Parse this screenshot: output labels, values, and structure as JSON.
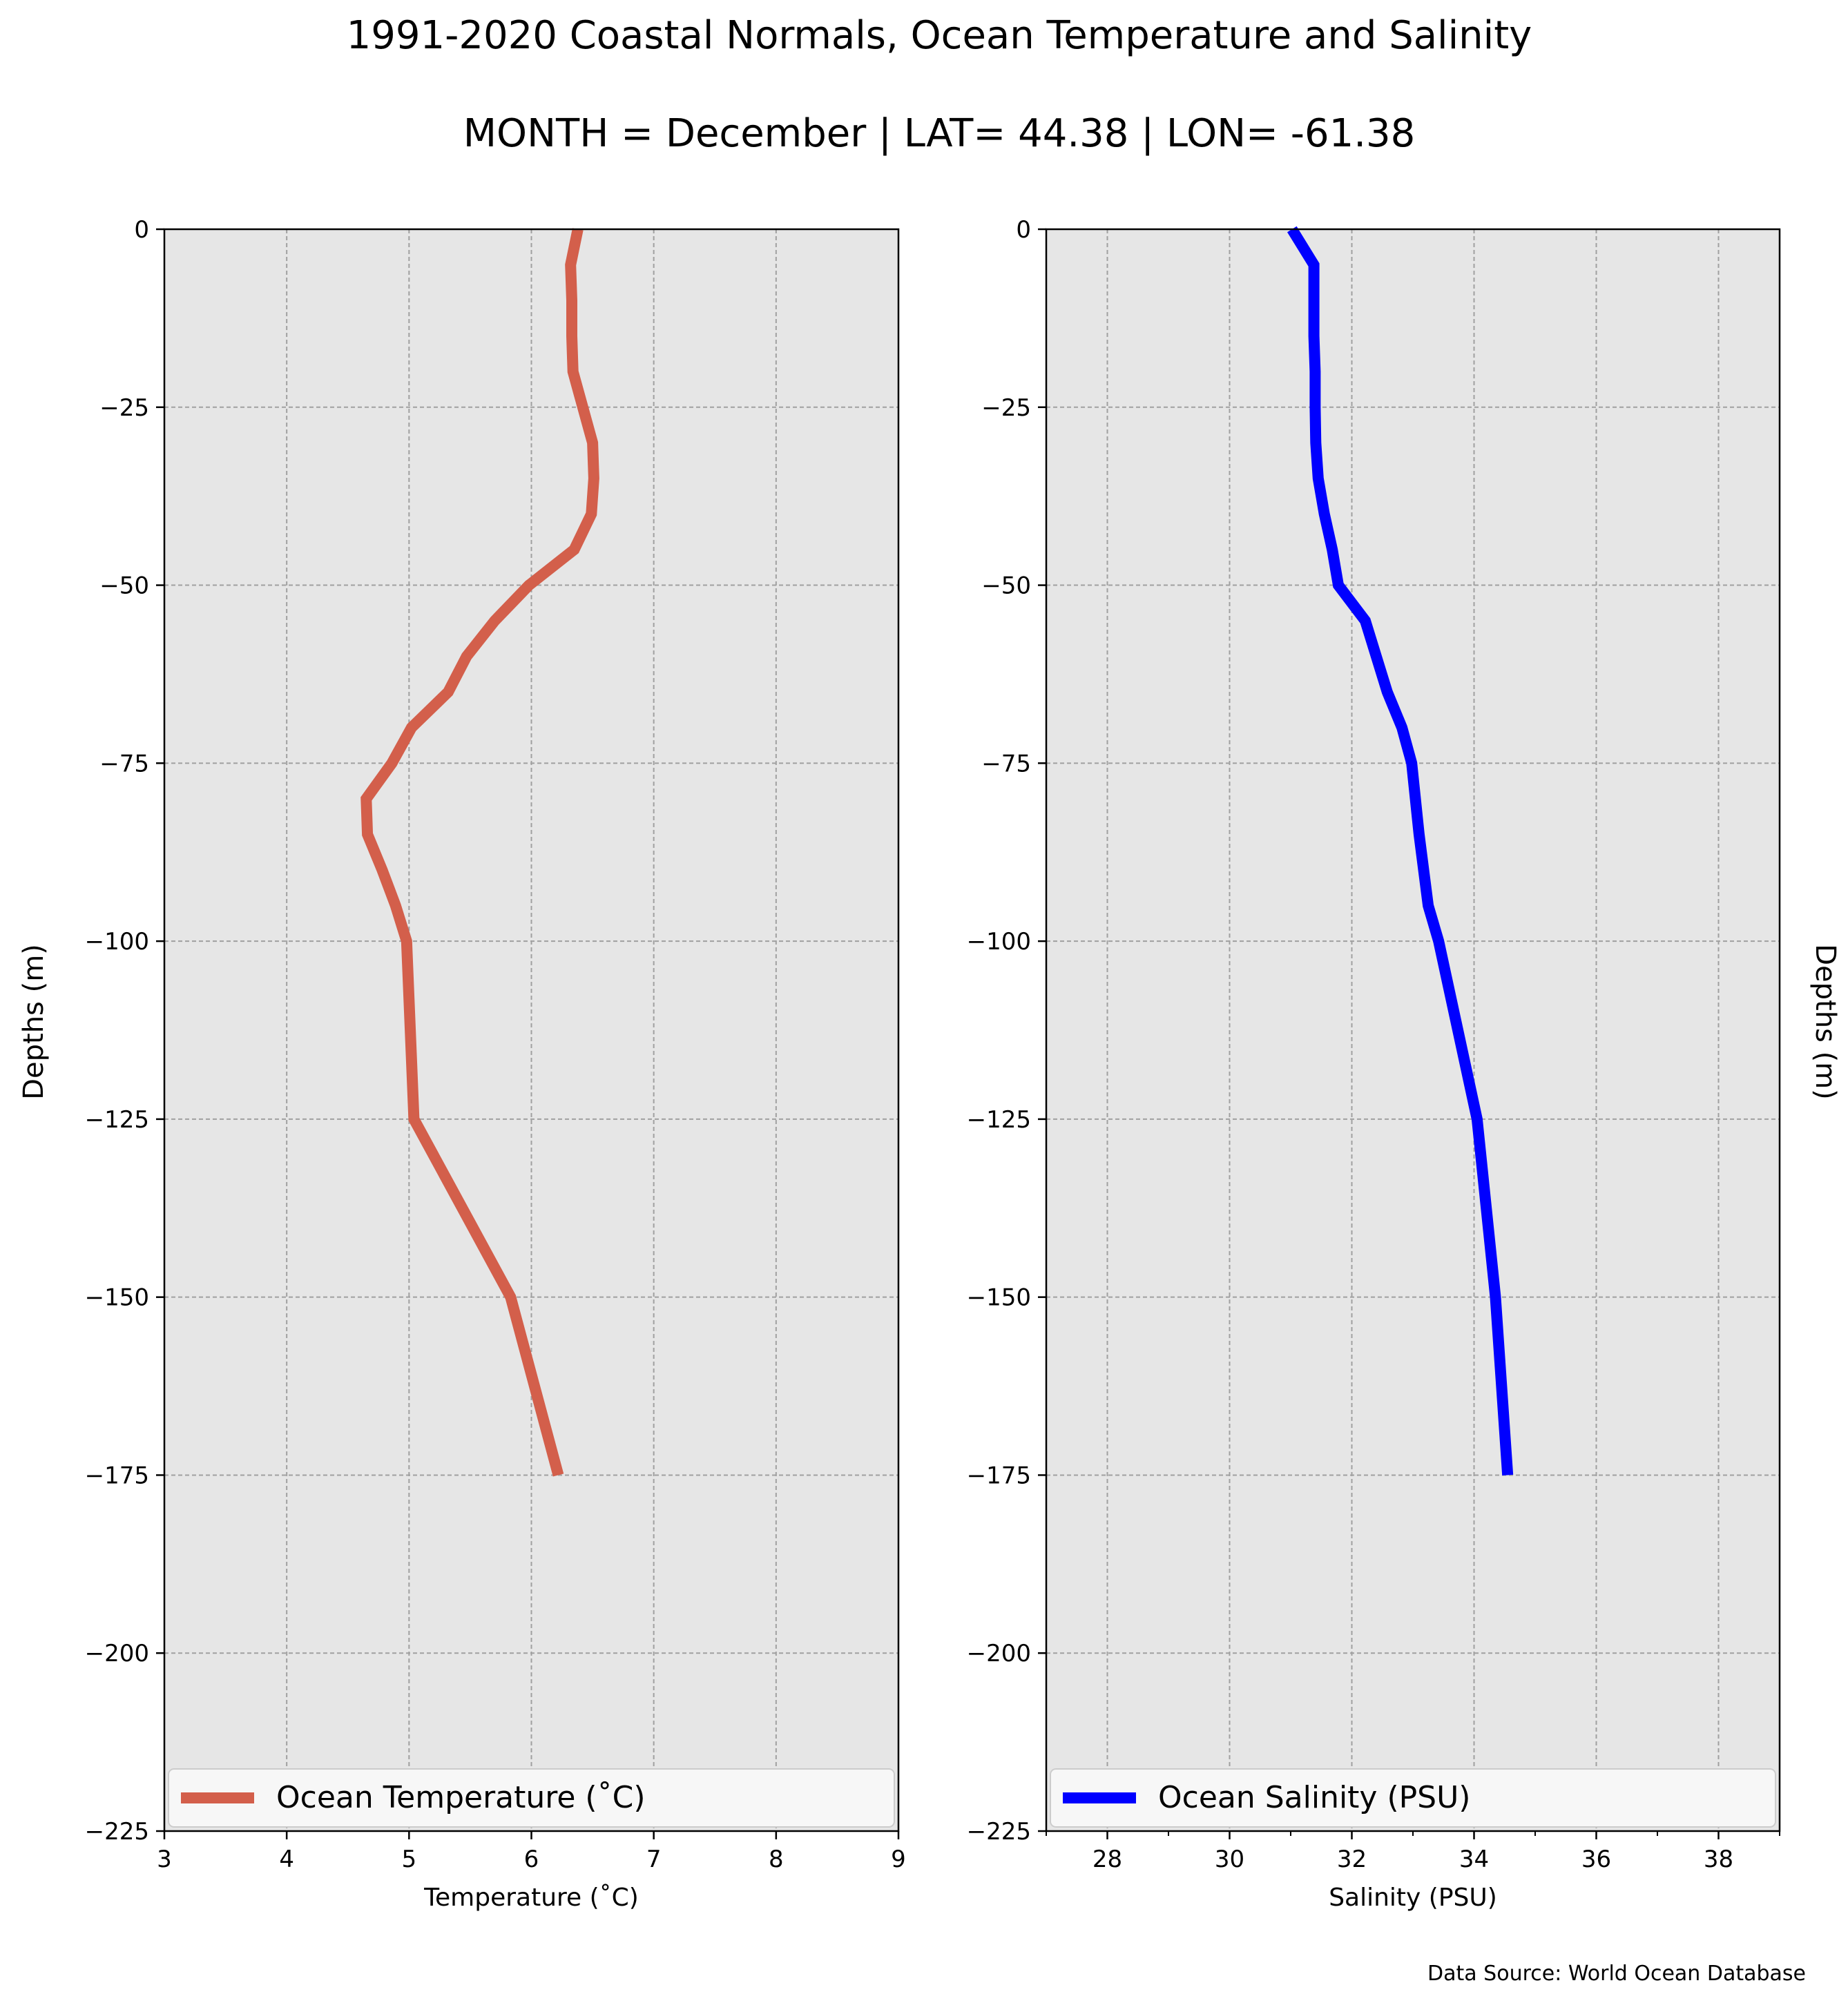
{
  "title": "1991-2020 Coastal Normals, Ocean Temperature and Salinity",
  "subtitle": "MONTH = December | LAT= 44.38 | LON= -61.38",
  "source": "Data Source: World Ocean Database",
  "chart_data": [
    {
      "type": "line",
      "xlabel": "Temperature ($^\\circ$C)",
      "xlabel_display": "Temperature (˚C)",
      "ylabel": "Depths (m)",
      "xlim": [
        3,
        9
      ],
      "ylim": [
        -225,
        0
      ],
      "xticks": [
        3,
        4,
        5,
        6,
        7,
        8,
        9
      ],
      "yticks": [
        0,
        -25,
        -50,
        -75,
        -100,
        -125,
        -150,
        -175,
        -200,
        -225
      ],
      "grid": true,
      "legend_placement": "lower center",
      "colors": {
        "line": "#d35f4b",
        "background": "#e6e6e6",
        "grid": "#a0a0a0"
      },
      "series": [
        {
          "name": "Ocean Temperature (˚C)",
          "x": [
            6.38,
            6.32,
            6.33,
            6.33,
            6.34,
            6.42,
            6.5,
            6.51,
            6.49,
            6.35,
            5.98,
            5.7,
            5.47,
            5.32,
            5.02,
            4.86,
            4.65,
            4.66,
            4.78,
            4.89,
            4.98,
            5.04,
            5.83,
            6.22
          ],
          "y": [
            0,
            -5,
            -10,
            -15,
            -20,
            -25,
            -30,
            -35,
            -40,
            -45,
            -50,
            -55,
            -60,
            -65,
            -70,
            -75,
            -80,
            -85,
            -90,
            -95,
            -100,
            -125,
            -150,
            -175
          ]
        }
      ]
    },
    {
      "type": "line",
      "xlabel": "Salinity (PSU)",
      "ylabel": "Depths (m)",
      "xlim": [
        27,
        39
      ],
      "ylim": [
        -225,
        0
      ],
      "xticks": [
        28,
        30,
        32,
        34,
        36,
        38
      ],
      "yticks": [
        0,
        -25,
        -50,
        -75,
        -100,
        -125,
        -150,
        -175,
        -200,
        -225
      ],
      "grid": true,
      "legend_placement": "lower center",
      "colors": {
        "line": "#0000ff",
        "background": "#e6e6e6",
        "grid": "#a0a0a0"
      },
      "series": [
        {
          "name": "Ocean Salinity (PSU)",
          "x": [
            31.02,
            31.38,
            31.38,
            31.38,
            31.4,
            31.4,
            31.41,
            31.45,
            31.55,
            31.68,
            31.78,
            32.22,
            32.4,
            32.58,
            32.82,
            32.98,
            33.1,
            33.25,
            33.42,
            34.05,
            34.35,
            34.55
          ],
          "y": [
            0,
            -5,
            -10,
            -15,
            -20,
            -25,
            -30,
            -35,
            -40,
            -45,
            -50,
            -55,
            -60,
            -65,
            -70,
            -75,
            -85,
            -95,
            -100,
            -125,
            -150,
            -175
          ]
        }
      ]
    }
  ]
}
